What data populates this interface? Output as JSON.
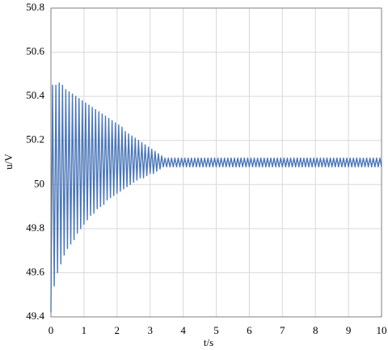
{
  "chart_data": {
    "type": "line",
    "x_label": "t/s",
    "y_label": "u/V",
    "x": [
      0,
      0.05,
      0.1,
      0.15,
      0.2,
      0.25,
      0.3,
      0.35,
      0.4,
      0.45,
      0.5,
      0.55,
      0.6,
      0.65,
      0.7,
      0.75,
      0.8,
      0.85,
      0.9,
      0.95,
      1,
      1.05,
      1.1,
      1.15,
      1.2,
      1.25,
      1.3,
      1.35,
      1.4,
      1.45,
      1.5,
      1.55,
      1.6,
      1.65,
      1.7,
      1.75,
      1.8,
      1.85,
      1.9,
      1.95,
      2,
      2.05,
      2.1,
      2.15,
      2.2,
      2.25,
      2.3,
      2.35,
      2.4,
      2.45,
      2.5,
      2.55,
      2.6,
      2.65,
      2.7,
      2.75,
      2.8,
      2.85,
      2.9,
      2.95,
      3,
      3.05,
      3.1,
      3.15,
      3.2,
      3.25,
      3.3,
      3.35,
      3.4,
      3.45,
      3.5,
      3.55,
      3.6,
      3.65,
      3.7,
      3.75,
      3.8,
      3.85,
      3.9,
      3.95,
      4,
      4.05,
      4.1,
      4.15,
      4.2,
      4.25,
      4.3,
      4.35,
      4.4,
      4.45,
      4.5,
      4.55,
      4.6,
      4.65,
      4.7,
      4.75,
      4.8,
      4.85,
      4.9,
      4.95,
      5,
      5.05,
      5.1,
      5.15,
      5.2,
      5.25,
      5.3,
      5.35,
      5.4,
      5.45,
      5.5,
      5.55,
      5.6,
      5.65,
      5.7,
      5.75,
      5.8,
      5.85,
      5.9,
      5.95,
      6,
      6.05,
      6.1,
      6.15,
      6.2,
      6.25,
      6.3,
      6.35,
      6.4,
      6.45,
      6.5,
      6.55,
      6.6,
      6.65,
      6.7,
      6.75,
      6.8,
      6.85,
      6.9,
      6.95,
      7,
      7.05,
      7.1,
      7.15,
      7.2,
      7.25,
      7.3,
      7.35,
      7.4,
      7.45,
      7.5,
      7.55,
      7.6,
      7.65,
      7.7,
      7.75,
      7.8,
      7.85,
      7.9,
      7.95,
      8,
      8.05,
      8.1,
      8.15,
      8.2,
      8.25,
      8.3,
      8.35,
      8.4,
      8.45,
      8.5,
      8.55,
      8.6,
      8.65,
      8.7,
      8.75,
      8.8,
      8.85,
      8.9,
      8.95,
      9,
      9.05,
      9.1,
      9.15,
      9.2,
      9.25,
      9.3,
      9.35,
      9.4,
      9.45,
      9.5,
      9.55,
      9.6,
      9.65,
      9.7,
      9.75,
      9.8,
      9.85,
      9.9,
      9.95,
      10
    ],
    "series": [
      {
        "color": "#4a76b8",
        "values": [
          49.42,
          50.45,
          49.54,
          50.45,
          49.6,
          50.46,
          49.64,
          50.45,
          49.68,
          50.43,
          49.71,
          50.42,
          49.73,
          50.41,
          49.75,
          50.4,
          49.78,
          50.39,
          49.8,
          50.38,
          49.82,
          50.37,
          49.84,
          50.36,
          49.86,
          50.35,
          49.87,
          50.34,
          49.89,
          50.33,
          49.9,
          50.32,
          49.91,
          50.31,
          49.93,
          50.3,
          49.94,
          50.29,
          49.95,
          50.28,
          49.96,
          50.27,
          49.97,
          50.26,
          49.98,
          50.24,
          49.99,
          50.23,
          50,
          50.22,
          50.01,
          50.21,
          50.02,
          50.2,
          50.03,
          50.19,
          50.03,
          50.18,
          50.04,
          50.17,
          50.05,
          50.16,
          50.05,
          50.15,
          50.06,
          50.14,
          50.07,
          50.13,
          50.08,
          50.12,
          50.08,
          50.12,
          50.08,
          50.12,
          50.08,
          50.12,
          50.08,
          50.12,
          50.08,
          50.12,
          50.08,
          50.12,
          50.08,
          50.12,
          50.08,
          50.12,
          50.08,
          50.12,
          50.08,
          50.12,
          50.08,
          50.12,
          50.08,
          50.12,
          50.08,
          50.12,
          50.08,
          50.12,
          50.08,
          50.12,
          50.08,
          50.12,
          50.08,
          50.12,
          50.08,
          50.12,
          50.08,
          50.12,
          50.08,
          50.12,
          50.08,
          50.12,
          50.08,
          50.12,
          50.08,
          50.12,
          50.08,
          50.12,
          50.08,
          50.12,
          50.08,
          50.12,
          50.08,
          50.12,
          50.08,
          50.12,
          50.08,
          50.12,
          50.08,
          50.12,
          50.08,
          50.12,
          50.08,
          50.12,
          50.08,
          50.12,
          50.08,
          50.12,
          50.08,
          50.12,
          50.08,
          50.12,
          50.08,
          50.12,
          50.08,
          50.12,
          50.08,
          50.12,
          50.08,
          50.12,
          50.08,
          50.12,
          50.08,
          50.12,
          50.08,
          50.12,
          50.08,
          50.12,
          50.08,
          50.12,
          50.08,
          50.12,
          50.08,
          50.12,
          50.08,
          50.12,
          50.08,
          50.12,
          50.08,
          50.12,
          50.08,
          50.12,
          50.08,
          50.12,
          50.08,
          50.12,
          50.08,
          50.12,
          50.08,
          50.12,
          50.08,
          50.12,
          50.08,
          50.12,
          50.08,
          50.12,
          50.08,
          50.12,
          50.08,
          50.12,
          50.08,
          50.12,
          50.08,
          50.12,
          50.08,
          50.12,
          50.08,
          50.12,
          50.08,
          50.12,
          50.08
        ]
      }
    ],
    "xlim": [
      0,
      10
    ],
    "xticks": [
      0,
      1,
      2,
      3,
      4,
      5,
      6,
      7,
      8,
      9,
      10
    ],
    "ylim": [
      49.4,
      50.8
    ],
    "yticks": [
      49.4,
      49.6,
      49.8,
      50,
      50.2,
      50.4,
      50.6,
      50.8
    ],
    "grid": true
  }
}
